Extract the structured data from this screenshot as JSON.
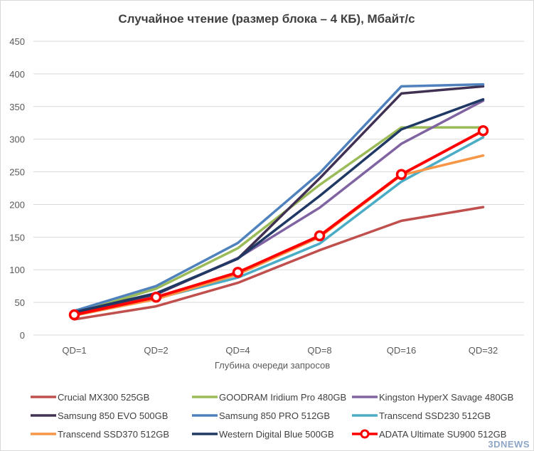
{
  "chart_data": {
    "type": "line",
    "title": "Случайное чтение (размер блока – 4 КБ), Мбайт/с",
    "xlabel": "Глубина очереди запросов",
    "ylabel": "",
    "categories": [
      "QD=1",
      "QD=2",
      "QD=4",
      "QD=8",
      "QD=16",
      "QD=32"
    ],
    "ylim": [
      0,
      450
    ],
    "yticks": [
      0,
      50,
      100,
      150,
      200,
      250,
      300,
      350,
      400,
      450
    ],
    "grid": true,
    "legend_position": "bottom",
    "series": [
      {
        "name": "Crucial MX300 525GB",
        "color": "#c0504d",
        "values": [
          24,
          44,
          80,
          130,
          175,
          196
        ]
      },
      {
        "name": "GOODRAM Iridium Pro 480GB",
        "color": "#9bbb59",
        "values": [
          33,
          71,
          133,
          230,
          318,
          318
        ]
      },
      {
        "name": "Kingston HyperX Savage 480GB",
        "color": "#8064a2",
        "values": [
          32,
          62,
          118,
          195,
          293,
          359
        ]
      },
      {
        "name": "Samsung 850 EVO 500GB",
        "color": "#403152",
        "values": [
          34,
          63,
          117,
          240,
          370,
          381
        ]
      },
      {
        "name": "Samsung 850 PRO 512GB",
        "color": "#4f81bd",
        "values": [
          37,
          75,
          141,
          248,
          381,
          384
        ]
      },
      {
        "name": "Transcend SSD230 512GB",
        "color": "#4bacc6",
        "values": [
          30,
          56,
          88,
          140,
          235,
          303
        ]
      },
      {
        "name": "Transcend SSD370 512GB",
        "color": "#f79646",
        "values": [
          30,
          55,
          93,
          150,
          245,
          275
        ]
      },
      {
        "name": "Western Digital Blue 500GB",
        "color": "#1f3864",
        "values": [
          35,
          64,
          117,
          213,
          315,
          361
        ]
      },
      {
        "name": "ADATA Ultimate SU900 512GB",
        "color": "#ff0000",
        "values": [
          31,
          58,
          96,
          152,
          246,
          313
        ],
        "markers": true
      }
    ]
  },
  "watermark": "3DNEWS"
}
